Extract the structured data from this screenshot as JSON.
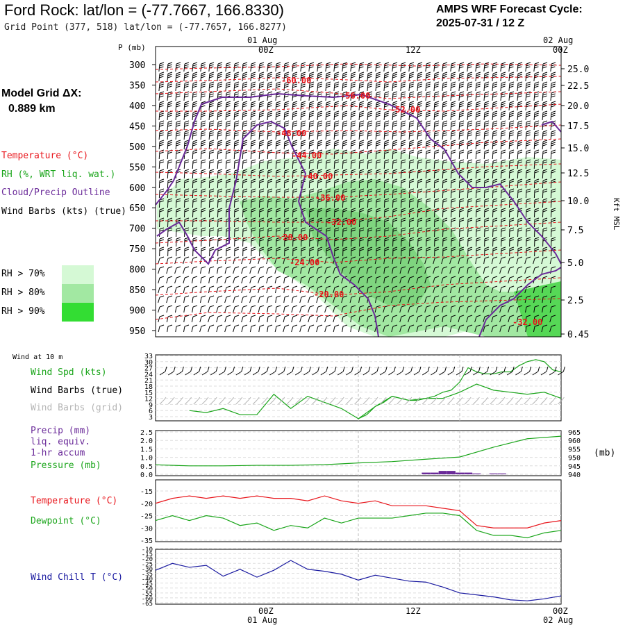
{
  "header": {
    "title": "Ford Rock:  lat/lon = (-77.7667, 166.8330)",
    "subtitle": "Grid Point (377, 518) lat/lon = (-77.7657, 166.8277)",
    "cycle_line1": "AMPS WRF Forecast Cycle:",
    "cycle_line2": "2025-07-31 / 12  Z"
  },
  "model_grid": {
    "label": "Model Grid ΔX:",
    "value": "0.889 km"
  },
  "legend": {
    "temperature": "Temperature (°C)",
    "rh": "RH (%, WRT liq. wat.)",
    "cloud": "Cloud/Precip Outline",
    "wind_barbs": "Wind Barbs (kts) (true)",
    "rh_levels": [
      "RH > 70%",
      "RH > 80%",
      "RH > 90%"
    ],
    "rh_colors": [
      "#d5f9d5",
      "#a2e8a2",
      "#33dd33"
    ]
  },
  "time_axis": {
    "top_dates": [
      "01 Aug",
      "02 Aug"
    ],
    "ticks": [
      "00Z",
      "12Z",
      "00Z"
    ]
  },
  "colors": {
    "temperature": "#e8141a",
    "rh_green": "#1aa51a",
    "cloud": "#6a2a99",
    "pressure": "#1aa51a",
    "wind_chill": "#1a1aa0",
    "grid_barbs": "#b5b5b5"
  },
  "chart_data": [
    {
      "type": "heatmap",
      "title": "Time-height cross section",
      "ylabel_left": "P (mb)",
      "ylabel_right": "Kft MSL",
      "pressure_ticks": [
        300,
        350,
        400,
        450,
        500,
        550,
        600,
        650,
        700,
        750,
        800,
        850,
        900,
        950
      ],
      "height_ticks": [
        "25.0",
        "22.5",
        "20.0",
        "17.5",
        "15.0",
        "12.5",
        "10.0",
        "7.5",
        "5.0",
        "2.5",
        "0.45"
      ],
      "temperature_contour_labels": [
        "-60.00",
        "-56.00",
        "-52.00",
        "-48.00",
        "-44.00",
        "-40.00",
        "-36.00",
        "-32.00",
        "-28.00",
        "-24.00",
        "-20.00",
        "-32.00"
      ]
    },
    {
      "type": "line",
      "title": "Wind at 10 m",
      "series": [
        {
          "name": "Wind Spd (kts)",
          "x_hours": [
            -20,
            -18,
            -16,
            -14,
            -12,
            -10,
            -8,
            -6,
            -4,
            -2,
            0,
            2,
            4,
            6,
            8,
            10,
            12,
            14,
            16,
            18,
            20,
            22,
            24
          ],
          "values": [
            6,
            5,
            7,
            4,
            4,
            14,
            7,
            13,
            10,
            7,
            2,
            8,
            13,
            11,
            12,
            12,
            15,
            19,
            16,
            15,
            14,
            15,
            12
          ]
        }
      ],
      "extra_series_hourly": {
        "x_hours": [
          0,
          1,
          2,
          3,
          4,
          5,
          6,
          7,
          8,
          9,
          10,
          11,
          12,
          13,
          14,
          15,
          16,
          17,
          18,
          19,
          20,
          21,
          22,
          23,
          24
        ],
        "values": [
          2,
          4,
          8,
          10,
          13,
          12,
          11,
          11,
          12,
          13,
          15,
          16,
          20,
          27,
          25,
          24,
          24,
          25,
          25,
          28,
          30,
          31,
          30,
          26,
          25
        ]
      },
      "y_ticks": [
        3,
        6,
        9,
        12,
        15,
        18,
        21,
        24,
        27,
        30,
        33
      ],
      "labels": {
        "speed": "Wind Spd (kts)",
        "barbs_true": "Wind Barbs (true)",
        "barbs_grid": "Wind Barbs (grid)"
      }
    },
    {
      "type": "line",
      "series": [
        {
          "name": "Pressure (mb)",
          "x_hours": [
            -24,
            -20,
            -16,
            -12,
            -8,
            -4,
            0,
            4,
            8,
            12,
            16,
            20,
            24
          ],
          "values": [
            945.6,
            945.0,
            945.0,
            945.3,
            945.3,
            945.7,
            946.7,
            947.5,
            948.9,
            950.2,
            956.0,
            961.0,
            962.5
          ]
        },
        {
          "name": "Precip (mm)",
          "x_hours": [
            8,
            9,
            10,
            11,
            12,
            13,
            14,
            16,
            17
          ],
          "values": [
            0.1,
            0.1,
            0.2,
            0.2,
            0.1,
            0.1,
            0.05,
            0.05,
            0.05
          ]
        }
      ],
      "y_ticks_left": [
        "2.5",
        "2.0",
        "1.5",
        "1.0",
        "0.5",
        "0.0"
      ],
      "y_ticks_right": [
        "965",
        "960",
        "955",
        "950",
        "945",
        "940"
      ],
      "labels": {
        "precip": "Precip (mm)",
        "liq": "liq. equiv.",
        "accum": "1-hr accum",
        "pressure": "Pressure (mb)",
        "unit_right": "(mb)"
      }
    },
    {
      "type": "line",
      "series": [
        {
          "name": "Temperature (°C)",
          "x_hours": [
            -24,
            -22,
            -20,
            -18,
            -16,
            -14,
            -12,
            -10,
            -8,
            -6,
            -4,
            -2,
            0,
            2,
            4,
            6,
            8,
            10,
            12,
            14,
            16,
            18,
            20,
            22,
            24
          ],
          "values": [
            -20,
            -18,
            -17,
            -18,
            -17,
            -18,
            -17,
            -18,
            -18,
            -19,
            -17,
            -19,
            -20,
            -19,
            -21,
            -21,
            -21,
            -22,
            -23,
            -29,
            -30,
            -30,
            -30,
            -28,
            -27
          ]
        },
        {
          "name": "Dewpoint (°C)",
          "x_hours": [
            -24,
            -22,
            -20,
            -18,
            -16,
            -14,
            -12,
            -10,
            -8,
            -6,
            -4,
            -2,
            0,
            2,
            4,
            6,
            8,
            10,
            12,
            14,
            16,
            18,
            20,
            22,
            24
          ],
          "values": [
            -27,
            -25,
            -27,
            -25,
            -26,
            -29,
            -28,
            -31,
            -29,
            -30,
            -26,
            -28,
            -26,
            -26,
            -26,
            -25,
            -24,
            -24,
            -25,
            -31,
            -33,
            -33,
            -34,
            -32,
            -31
          ]
        }
      ],
      "extra_series_hourly": {
        "x_hours": [
          -24,
          -20,
          -16,
          -14,
          -12,
          -10,
          -8,
          -6,
          -4,
          -2,
          0,
          2,
          4,
          6,
          8,
          10,
          12,
          14,
          16,
          18,
          20,
          22,
          24
        ],
        "values": [
          -27,
          -25,
          -26,
          -28,
          -28,
          -28,
          -31,
          -29,
          -30,
          -26,
          -28,
          -26,
          -26,
          -25,
          -24,
          -25,
          -31,
          -33,
          -34,
          -33,
          -34,
          -33,
          -31
        ]
      },
      "y_ticks": [
        -15,
        -20,
        -25,
        -30,
        -35
      ]
    },
    {
      "type": "line",
      "series": [
        {
          "name": "Wind Chill T (°C)",
          "x_hours": [
            -24,
            -22,
            -20,
            -18,
            -16,
            -14,
            -12,
            -10,
            -8,
            -6,
            -4,
            -2,
            0,
            2,
            4,
            6,
            8,
            10,
            12,
            14,
            16,
            18,
            20,
            22,
            24
          ],
          "values": [
            -32,
            -25,
            -29,
            -27,
            -38,
            -31,
            -39,
            -32,
            -22,
            -31,
            -33,
            -36,
            -42,
            -37,
            -40,
            -43,
            -44,
            -49,
            -55,
            -57,
            -59,
            -62,
            -63,
            -61,
            -58
          ]
        }
      ],
      "y_ticks": [
        -10,
        -15,
        -20,
        -25,
        -30,
        -35,
        -40,
        -45,
        -50,
        -55,
        -60,
        -65
      ]
    }
  ],
  "footer": {
    "tick_left": "00Z",
    "tick_mid": "12Z",
    "tick_right": "00Z",
    "date_left": "01 Aug",
    "date_right": "02 Aug"
  }
}
